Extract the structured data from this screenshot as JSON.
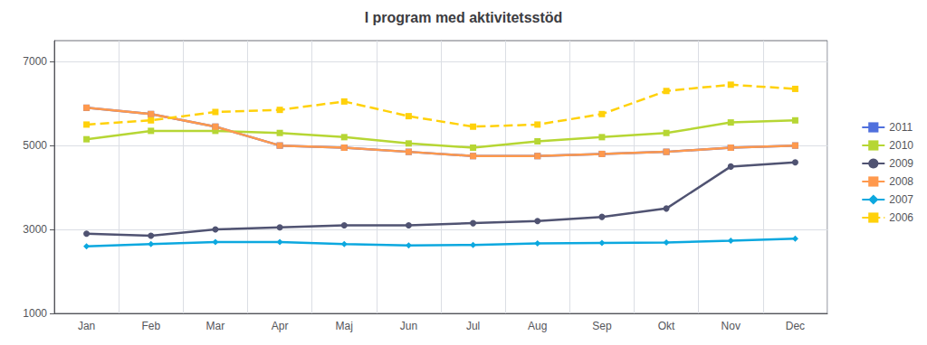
{
  "chart_data": {
    "type": "line",
    "title": "I program med aktivitetsstöd",
    "categories": [
      "Jan",
      "Feb",
      "Mar",
      "Apr",
      "Maj",
      "Jun",
      "Jul",
      "Aug",
      "Sep",
      "Okt",
      "Nov",
      "Dec"
    ],
    "series": [
      {
        "name": "2011",
        "values": [
          5900,
          5750,
          5450,
          5000,
          4950,
          4850,
          4750,
          4750,
          4800,
          4850,
          4950,
          5000
        ],
        "marker": "square",
        "line_style": "solid"
      },
      {
        "name": "2010",
        "values": [
          5150,
          5350,
          5350,
          5300,
          5200,
          5050,
          4950,
          5100,
          5200,
          5300,
          5550,
          5600
        ],
        "marker": "square",
        "line_style": "solid"
      },
      {
        "name": "2009",
        "values": [
          2900,
          2850,
          3000,
          3050,
          3100,
          3100,
          3150,
          3200,
          3300,
          3500,
          4500,
          4600
        ],
        "marker": "circle",
        "line_style": "solid"
      },
      {
        "name": "2008",
        "values": [
          5900,
          5750,
          5450,
          5000,
          4950,
          4850,
          4750,
          4750,
          4800,
          4850,
          4950,
          5000
        ],
        "marker": "square",
        "line_style": "solid"
      },
      {
        "name": "2007",
        "values": [
          2600,
          2650,
          2700,
          2700,
          2650,
          2620,
          2630,
          2670,
          2680,
          2690,
          2730,
          2780
        ],
        "marker": "diamond",
        "line_style": "solid"
      },
      {
        "name": "2006",
        "values": [
          5500,
          5600,
          5800,
          5850,
          6050,
          5700,
          5450,
          5500,
          5750,
          6300,
          6450,
          6350
        ],
        "marker": "square",
        "line_style": "dashed"
      }
    ],
    "ylim": [
      1000,
      7500
    ],
    "yticks": [
      1000,
      3000,
      5000,
      7000
    ],
    "grid": true,
    "legend": "right"
  }
}
